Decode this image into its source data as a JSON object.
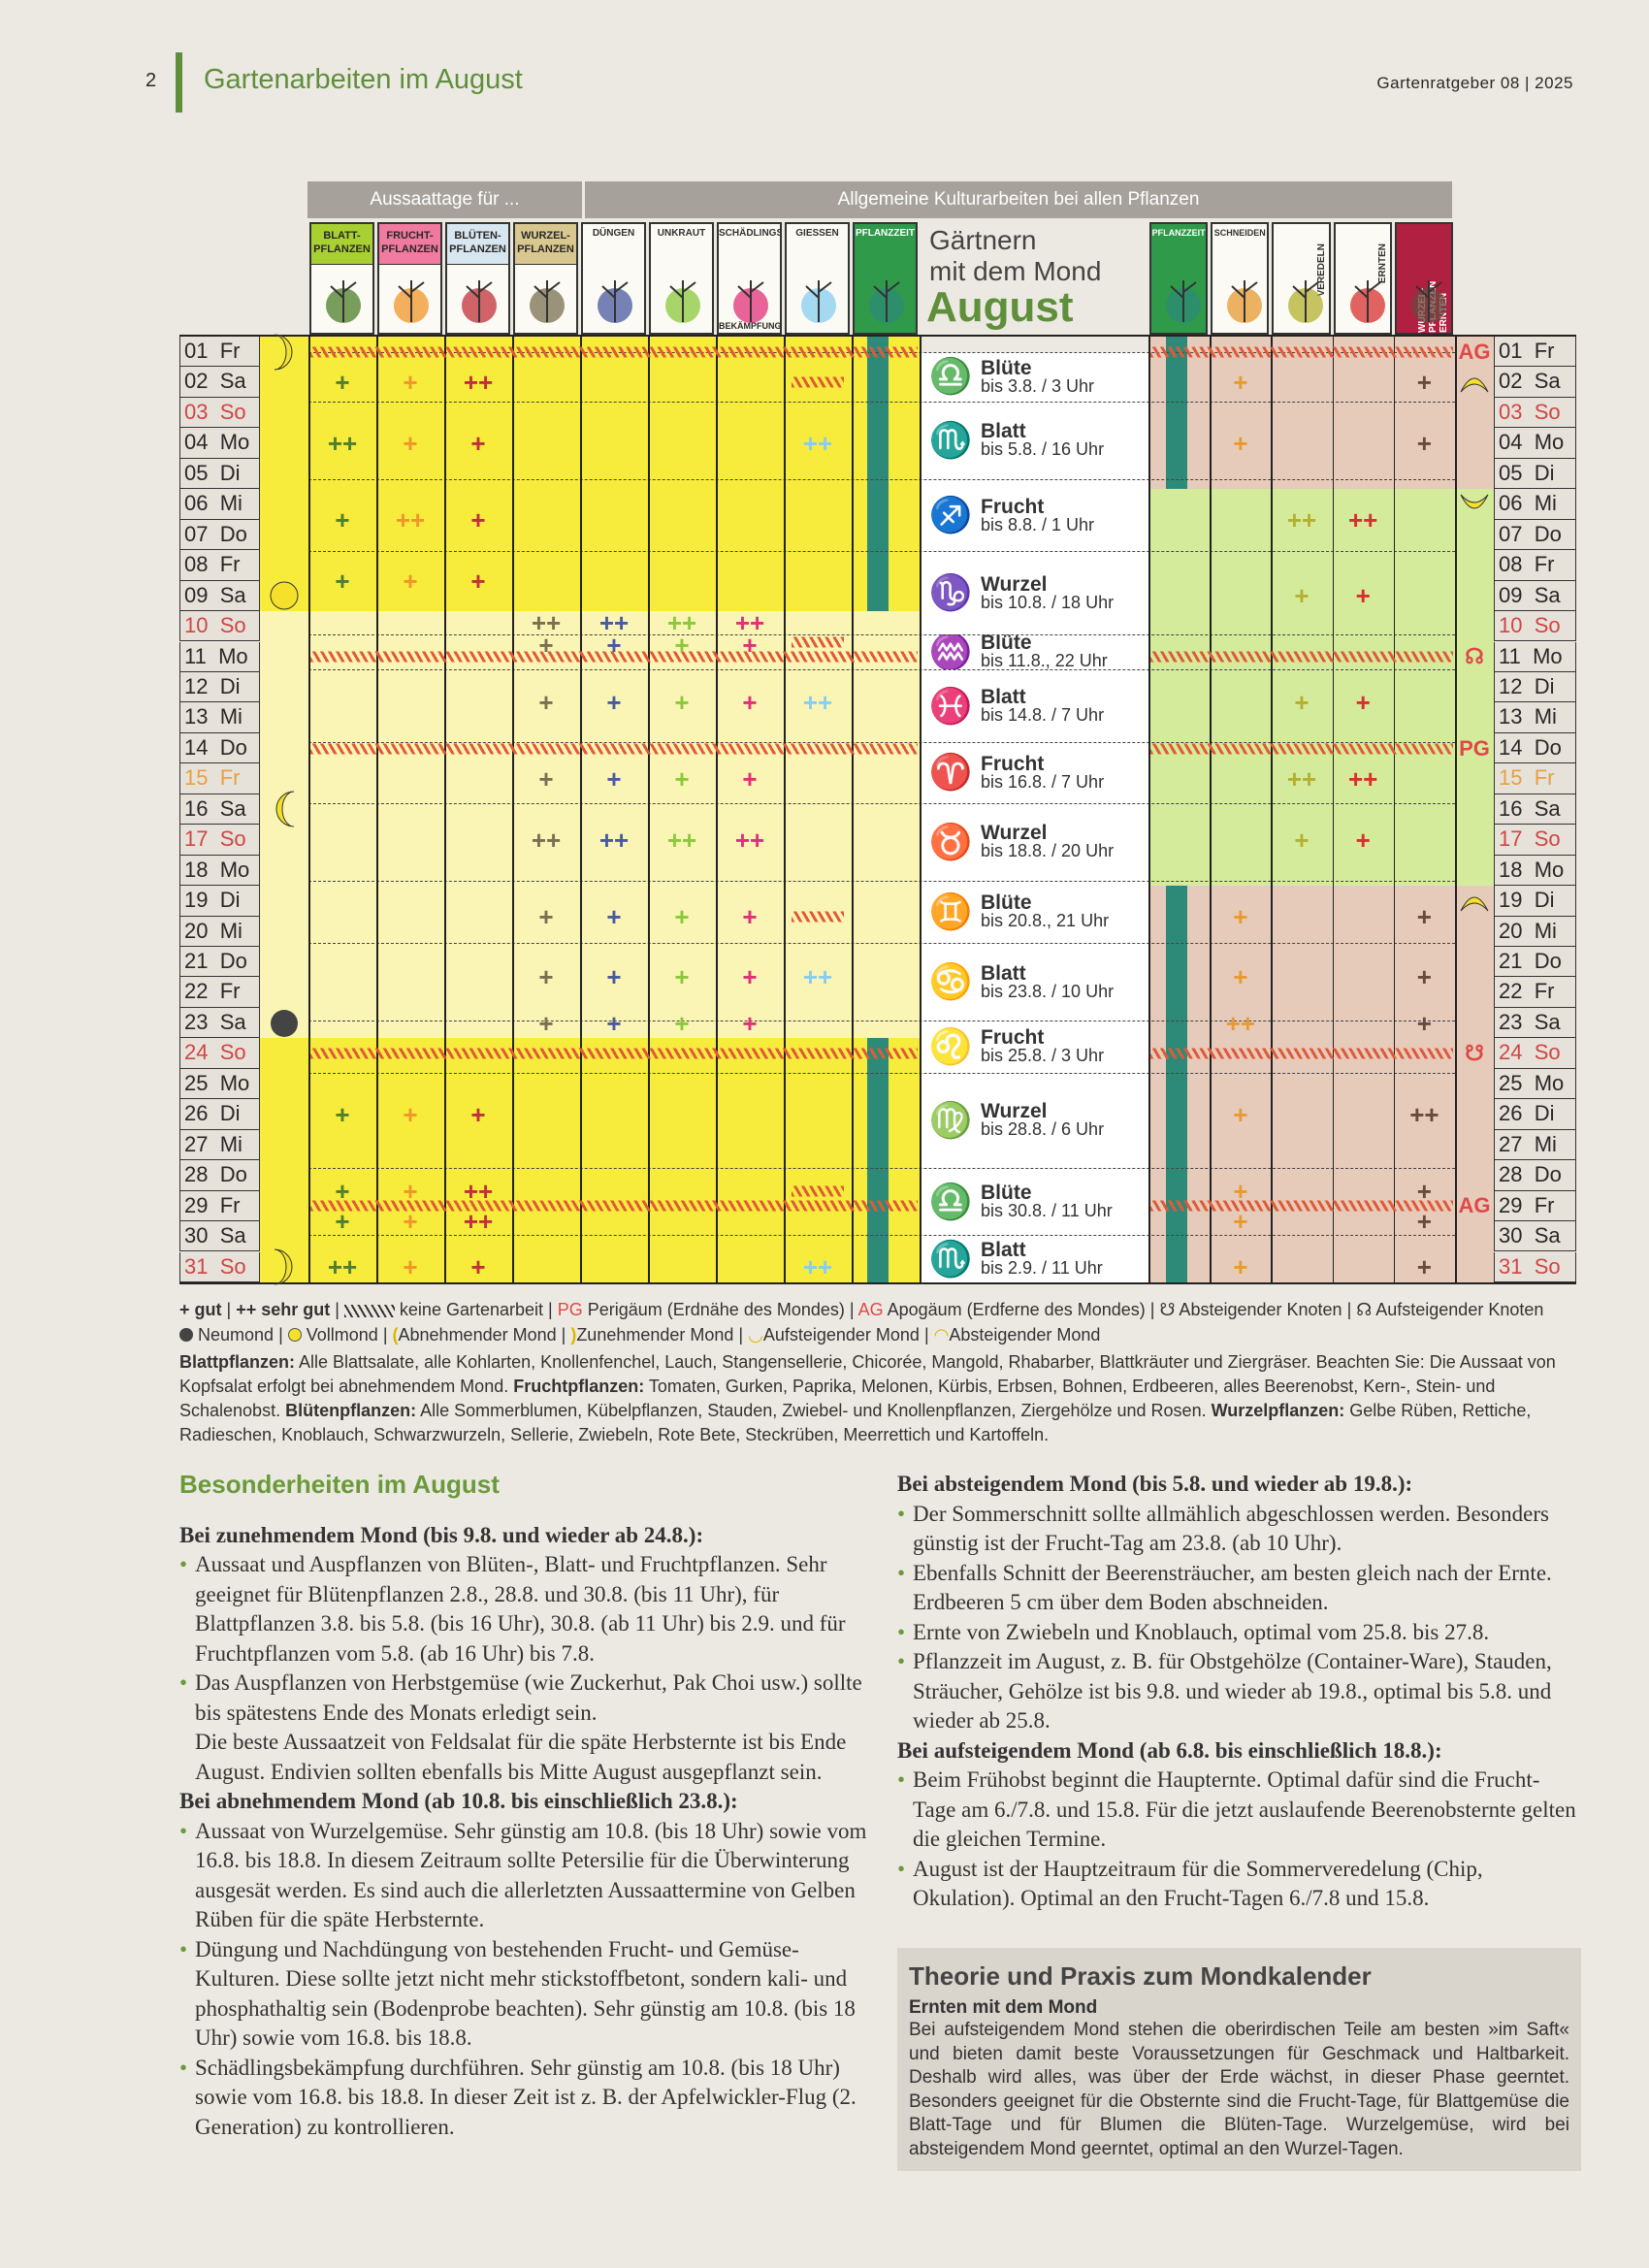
{
  "header": {
    "page_number": "2",
    "title": "Gartenarbeiten im August",
    "publication": "Gartenratgeber 08 | 2025",
    "accent": "#5f8f3a"
  },
  "calendar": {
    "group_left": "Aussaattage für ...",
    "group_right": "Allgemeine Kulturarbeiten bei allen Pflanzen",
    "title_line1": "Gärtnern",
    "title_line2": "mit dem Mond",
    "month": "August",
    "left_columns": [
      {
        "label": "BLATT-PFLANZEN",
        "head_color": "#a8d030",
        "mark_color": "#4e7f2a"
      },
      {
        "label": "FRUCHT-PFLANZEN",
        "head_color": "#f07aa0",
        "mark_color": "#f0962a"
      },
      {
        "label": "BLÜTEN-PFLANZEN",
        "head_color": "#d8e6f0",
        "mark_color": "#c0303a"
      },
      {
        "label": "WURZEL-PFLANZEN",
        "head_color": "#d8c890",
        "mark_color": "#7a7050"
      },
      {
        "label": "DÜNGEN",
        "head_color": "#fbfaf4",
        "mark_color": "#4a5aa0"
      },
      {
        "label": "UNKRAUT",
        "head_color": "#fbfaf4",
        "mark_color": "#8cc83c"
      },
      {
        "label": "SCHÄDLINGS",
        "label2": "BEKÄMPFUNG",
        "head_color": "#fbfaf4",
        "mark_color": "#e0307a"
      },
      {
        "label": "GIESSEN",
        "head_color": "#fbfaf4",
        "mark_color": "#88cdf0"
      },
      {
        "label": "PFLANZZEIT",
        "head_color": "#2e9a4a",
        "mark_color": "#2e8a78"
      }
    ],
    "right_columns": [
      {
        "label": "PFLANZZEIT",
        "head_color": "#2e9a4a",
        "mark_color": "#2e8a78"
      },
      {
        "label": "SCHNEIDEN",
        "head_color": "#fbfaf4",
        "mark_color": "#e89a30"
      },
      {
        "label": "VEREDELN",
        "head_color": "#fbfaf4",
        "mark_color": "#b4b030"
      },
      {
        "label": "ERNTEN",
        "head_color": "#fbfaf4",
        "mark_color": "#d83030"
      },
      {
        "label": "WURZEL-PFLANZEN ERNTEN",
        "head_color": "#b02040",
        "mark_color": "#6a4a40"
      }
    ],
    "days": [
      {
        "d": "01",
        "w": "Fr"
      },
      {
        "d": "02",
        "w": "Sa"
      },
      {
        "d": "03",
        "w": "So",
        "t": "sun"
      },
      {
        "d": "04",
        "w": "Mo"
      },
      {
        "d": "05",
        "w": "Di"
      },
      {
        "d": "06",
        "w": "Mi"
      },
      {
        "d": "07",
        "w": "Do"
      },
      {
        "d": "08",
        "w": "Fr"
      },
      {
        "d": "09",
        "w": "Sa"
      },
      {
        "d": "10",
        "w": "So",
        "t": "sun"
      },
      {
        "d": "11",
        "w": "Mo"
      },
      {
        "d": "12",
        "w": "Di"
      },
      {
        "d": "13",
        "w": "Mi"
      },
      {
        "d": "14",
        "w": "Do"
      },
      {
        "d": "15",
        "w": "Fr",
        "t": "holiday"
      },
      {
        "d": "16",
        "w": "Sa"
      },
      {
        "d": "17",
        "w": "So",
        "t": "sun"
      },
      {
        "d": "18",
        "w": "Mo"
      },
      {
        "d": "19",
        "w": "Di"
      },
      {
        "d": "20",
        "w": "Mi"
      },
      {
        "d": "21",
        "w": "Do"
      },
      {
        "d": "22",
        "w": "Fr"
      },
      {
        "d": "23",
        "w": "Sa"
      },
      {
        "d": "24",
        "w": "So",
        "t": "sun"
      },
      {
        "d": "25",
        "w": "Mo"
      },
      {
        "d": "26",
        "w": "Di"
      },
      {
        "d": "27",
        "w": "Mi"
      },
      {
        "d": "28",
        "w": "Do"
      },
      {
        "d": "29",
        "w": "Fr"
      },
      {
        "d": "30",
        "w": "Sa"
      },
      {
        "d": "31",
        "w": "So",
        "t": "sun"
      }
    ],
    "day_colors": {
      "sun": "#d04545",
      "holiday": "#e8a040"
    },
    "zodiac": [
      {
        "type": "Blüte",
        "until": "bis 3.8. / 3 Uhr",
        "icon": "♎"
      },
      {
        "type": "Blatt",
        "until": "bis 5.8. / 16 Uhr",
        "icon": "♏"
      },
      {
        "type": "Frucht",
        "until": "bis 8.8. / 1 Uhr",
        "icon": "♐"
      },
      {
        "type": "Wurzel",
        "until": "bis 10.8. / 18 Uhr",
        "icon": "♑"
      },
      {
        "type": "Blüte",
        "until": "bis 11.8., 22 Uhr",
        "icon": "♒"
      },
      {
        "type": "Blatt",
        "until": "bis 14.8. / 7 Uhr",
        "icon": "♓"
      },
      {
        "type": "Frucht",
        "until": "bis 16.8. / 7 Uhr",
        "icon": "♈"
      },
      {
        "type": "Wurzel",
        "until": "bis 18.8. / 20 Uhr",
        "icon": "♉"
      },
      {
        "type": "Blüte",
        "until": "bis 20.8., 21 Uhr",
        "icon": "♊"
      },
      {
        "type": "Blatt",
        "until": "bis 23.8. / 10 Uhr",
        "icon": "♋"
      },
      {
        "type": "Frucht",
        "until": "bis 25.8. / 3 Uhr",
        "icon": "♌"
      },
      {
        "type": "Wurzel",
        "until": "bis 28.8. / 6 Uhr",
        "icon": "♍"
      },
      {
        "type": "Blüte",
        "until": "bis 30.8. / 11 Uhr",
        "icon": "♎"
      },
      {
        "type": "Blatt",
        "until": "bis 2.9. / 11 Uhr",
        "icon": "♏"
      }
    ],
    "left_bands": [
      {
        "range": "01-09",
        "color": "#f7ec3c"
      },
      {
        "range": "10-23",
        "color": "#faf5b4"
      },
      {
        "range": "24-31",
        "color": "#f7ec3c"
      }
    ],
    "right_bands": [
      {
        "range": "01-05",
        "color": "#e6cbbb"
      },
      {
        "range": "06-18",
        "color": "#d5eb9c"
      },
      {
        "range": "19-31",
        "color": "#e6cbbb"
      }
    ],
    "pflanzzeit_left": [
      "01-09",
      "24-31"
    ],
    "pflanzzeit_right": [
      "01-05",
      "19-31"
    ],
    "no_work_days": [
      "01",
      "11",
      "14",
      "24",
      "29"
    ],
    "no_watering": [
      "02",
      "10/11",
      "19/20",
      "28/29"
    ],
    "left_marks": [
      {
        "day": "02",
        "m": [
          "+",
          "+",
          "++",
          "",
          "",
          "",
          "",
          ""
        ]
      },
      {
        "day": "04",
        "m": [
          "++",
          "+",
          "+",
          "",
          "",
          "",
          "",
          "++"
        ]
      },
      {
        "day": "06/07",
        "m": [
          "+",
          "++",
          "+",
          "",
          "",
          "",
          "",
          ""
        ]
      },
      {
        "day": "08/09",
        "m": [
          "+",
          "+",
          "+",
          "",
          "",
          "",
          "",
          ""
        ]
      },
      {
        "day": "10",
        "m": [
          "",
          "",
          "",
          "++",
          "++",
          "++",
          "++",
          ""
        ]
      },
      {
        "day": "10/11",
        "m": [
          "",
          "",
          "",
          "+",
          "+",
          "+",
          "+",
          ""
        ]
      },
      {
        "day": "12/13",
        "m": [
          "",
          "",
          "",
          "+",
          "+",
          "+",
          "+",
          "++"
        ]
      },
      {
        "day": "15",
        "m": [
          "",
          "",
          "",
          "+",
          "+",
          "+",
          "+",
          ""
        ]
      },
      {
        "day": "17",
        "m": [
          "",
          "",
          "",
          "++",
          "++",
          "++",
          "++",
          ""
        ]
      },
      {
        "day": "19/20",
        "m": [
          "",
          "",
          "",
          "+",
          "+",
          "+",
          "+",
          ""
        ]
      },
      {
        "day": "21/22",
        "m": [
          "",
          "",
          "",
          "+",
          "+",
          "+",
          "+",
          "++"
        ]
      },
      {
        "day": "23",
        "m": [
          "",
          "",
          "",
          "+",
          "+",
          "+",
          "+",
          ""
        ]
      },
      {
        "day": "26",
        "m": [
          "+",
          "+",
          "+",
          "",
          "",
          "",
          "",
          ""
        ]
      },
      {
        "day": "28/29",
        "m": [
          "+",
          "+",
          "++",
          "",
          "",
          "",
          "",
          ""
        ]
      },
      {
        "day": "29/30",
        "m": [
          "+",
          "+",
          "++",
          "",
          "",
          "",
          "",
          ""
        ]
      },
      {
        "day": "31",
        "m": [
          "++",
          "+",
          "+",
          "",
          "",
          "",
          "",
          "++"
        ]
      }
    ],
    "right_marks": [
      {
        "day": "02",
        "m": [
          "",
          "+",
          "",
          "",
          "+"
        ]
      },
      {
        "day": "04",
        "m": [
          "",
          "+",
          "",
          "",
          "+"
        ]
      },
      {
        "day": "06/07",
        "m": [
          "",
          "",
          "++",
          "++",
          ""
        ]
      },
      {
        "day": "09",
        "m": [
          "",
          "",
          "+",
          "+",
          ""
        ]
      },
      {
        "day": "12/13",
        "m": [
          "",
          "",
          "+",
          "+",
          ""
        ]
      },
      {
        "day": "15",
        "m": [
          "",
          "",
          "++",
          "++",
          ""
        ]
      },
      {
        "day": "17",
        "m": [
          "",
          "",
          "+",
          "+",
          ""
        ]
      },
      {
        "day": "19/20",
        "m": [
          "",
          "+",
          "",
          "",
          "+"
        ]
      },
      {
        "day": "21/22",
        "m": [
          "",
          "+",
          "",
          "",
          "+"
        ]
      },
      {
        "day": "23",
        "m": [
          "",
          "++",
          "",
          "",
          "+"
        ]
      },
      {
        "day": "26",
        "m": [
          "",
          "+",
          "",
          "",
          "++"
        ]
      },
      {
        "day": "28/29",
        "m": [
          "",
          "+",
          "",
          "",
          "+"
        ]
      },
      {
        "day": "29/30",
        "m": [
          "",
          "+",
          "",
          "",
          "+"
        ]
      },
      {
        "day": "31",
        "m": [
          "",
          "+",
          "",
          "",
          "+"
        ]
      }
    ],
    "moon_phases": [
      {
        "day": "01",
        "icon": "waxing-moon"
      },
      {
        "day": "09",
        "icon": "full-moon"
      },
      {
        "day": "16",
        "icon": "waning-moon"
      },
      {
        "day": "23",
        "icon": "new-moon"
      },
      {
        "day": "31",
        "icon": "waxing-moon"
      }
    ],
    "right_markers": [
      {
        "day": "01",
        "text": "AG"
      },
      {
        "day": "02",
        "icon": "descending-moon"
      },
      {
        "day": "06",
        "icon": "ascending-moon"
      },
      {
        "day": "11",
        "text": "☊"
      },
      {
        "day": "14",
        "text": "PG"
      },
      {
        "day": "19",
        "icon": "descending-moon"
      },
      {
        "day": "24",
        "text": "☋"
      },
      {
        "day": "29",
        "text": "AG"
      }
    ],
    "marker_color": "#e04848"
  },
  "legend": {
    "gut": "+ gut",
    "sehr_gut": "++ sehr gut",
    "keine": "keine Gartenarbeit",
    "pg": "PG",
    "pg_text": "Perigäum (Erdnähe des Mondes)",
    "ag": "AG",
    "ag_text": "Apogäum (Erdferne des Mondes)",
    "abs_knoten": "☋ Absteigender Knoten",
    "auf_knoten": "☊ Aufsteigender Knoten",
    "neumond": "Neumond",
    "vollmond": "Vollmond",
    "abnehmend": "Abnehmender Mond",
    "zunehmend": "Zunehmender Mond",
    "aufsteigend": "Aufsteigender Mond",
    "absteigend": "Absteigender Mond"
  },
  "definitions": [
    {
      "term": "Blattpflanzen:",
      "text": " Alle Blattsalate, alle Kohlarten, Knollenfenchel, Lauch, Stangensellerie, Chicorée, Mangold, Rhabarber, Blattkräuter und Ziergräser. Beachten Sie: Die Aussaat von Kopfsalat erfolgt bei abnehmendem Mond. "
    },
    {
      "term": "Fruchtpflanzen:",
      "text": " Tomaten, Gurken, Paprika, Melonen, Kürbis, Erbsen, Bohnen, Erdbeeren, alles Beerenobst, Kern-, Stein- und Schalenobst. "
    },
    {
      "term": "Blütenpflanzen:",
      "text": " Alle Sommerblumen, Kübelpflanzen, Stauden, Zwiebel- und Knollenpflanzen, Ziergehölze und Rosen. "
    },
    {
      "term": "Wurzelpflanzen:",
      "text": " Gelbe Rüben, Rettiche, Radieschen, Knoblauch, Schwarzwurzeln, Sellerie, Zwiebeln, Rote Bete, Steckrüben, Meerrettich und Kartoffeln."
    }
  ],
  "left_column": {
    "heading": "Besonderheiten im August",
    "s1_title": "Bei zunehmendem Mond (bis 9.8. und wieder ab 24.8.):",
    "s1_b1": "Aussaat und Auspflanzen von Blüten-, Blatt- und Fruchtpflanzen. Sehr geeignet für Blütenpflanzen 2.8., 28.8. und 30.8. (bis 11 Uhr), für Blattpflanzen 3.8. bis 5.8. (bis 16 Uhr), 30.8. (ab 11 Uhr) bis 2.9. und für Fruchtpflanzen vom 5.8. (ab 16 Uhr) bis 7.8.",
    "s1_b2": "Das Auspflanzen von Herbstgemüse (wie Zuckerhut, Pak Choi usw.) sollte bis spätestens Ende des Monats erledigt sein.",
    "s1_b2b": "Die beste Aussaatzeit von Feldsalat für die späte Herbsternte ist bis Ende August. Endivien sollten ebenfalls bis Mitte August ausgepflanzt sein.",
    "s2_title": "Bei abnehmendem Mond (ab 10.8. bis einschließlich 23.8.):",
    "s2_b1": "Aussaat von Wurzelgemüse. Sehr günstig am 10.8. (bis 18 Uhr) sowie vom 16.8. bis 18.8. In diesem Zeitraum sollte Petersilie für die Überwinterung ausgesät werden. Es sind auch die allerletzten Aussaattermine von Gelben Rüben für die späte Herbsternte.",
    "s2_b2": "Düngung und Nachdüngung von bestehenden Frucht- und Gemüse-Kulturen. Diese sollte jetzt nicht mehr stickstoffbetont, sondern kali- und phosphathaltig sein (Bodenprobe beachten). Sehr günstig am 10.8. (bis 18 Uhr) sowie vom 16.8. bis 18.8.",
    "s2_b3": "Schädlingsbekämpfung durchführen. Sehr günstig am 10.8. (bis 18 Uhr) sowie vom 16.8. bis 18.8. In dieser Zeit ist z. B. der Apfelwickler-Flug (2. Generation) zu kontrollieren."
  },
  "right_column": {
    "s1_title": "Bei absteigendem Mond (bis 5.8. und wieder ab 19.8.):",
    "s1_b1": "Der Sommerschnitt sollte allmählich abgeschlossen werden. Besonders günstig ist der Frucht-Tag am 23.8. (ab 10 Uhr).",
    "s1_b2": "Ebenfalls Schnitt der Beerensträucher, am besten gleich nach der Ernte. Erdbeeren 5 cm über dem Boden abschneiden.",
    "s1_b3": "Ernte von Zwiebeln und Knoblauch, optimal vom 25.8. bis 27.8.",
    "s1_b4": "Pflanzzeit im August, z. B. für Obstgehölze (Container-Ware), Stauden, Sträucher, Gehölze ist bis 9.8. und wieder ab 19.8., optimal bis 5.8. und wieder ab 25.8.",
    "s2_title": "Bei aufsteigendem Mond (ab 6.8. bis einschließlich 18.8.):",
    "s2_b1": "Beim Frühobst beginnt die Haupternte. Optimal dafür sind die Frucht-Tage am 6./7.8. und 15.8. Für die jetzt auslaufende Beerenobsternte gelten die gleichen Termine.",
    "s2_b2": "August ist der Hauptzeitraum für die Sommerveredelung (Chip, Okulation). Optimal an den Frucht-Tagen 6./7.8 und 15.8."
  },
  "theory_box": {
    "title": "Theorie und Praxis zum Mondkalender",
    "subtitle": "Ernten mit dem Mond",
    "text": "Bei aufsteigendem Mond stehen die oberirdischen Teile am besten »im Saft« und bieten damit beste Voraussetzungen für Geschmack und Haltbarkeit. Deshalb wird alles, was über der Erde wächst, in dieser Phase geerntet. Besonders geeignet für die Obsternte sind die Frucht-Tage, für Blattgemüse die Blatt-Tage und für Blumen die Blüten-Tage. Wurzelgemüse, wird bei absteigendem Mond geerntet, optimal an den Wurzel-Tagen."
  }
}
